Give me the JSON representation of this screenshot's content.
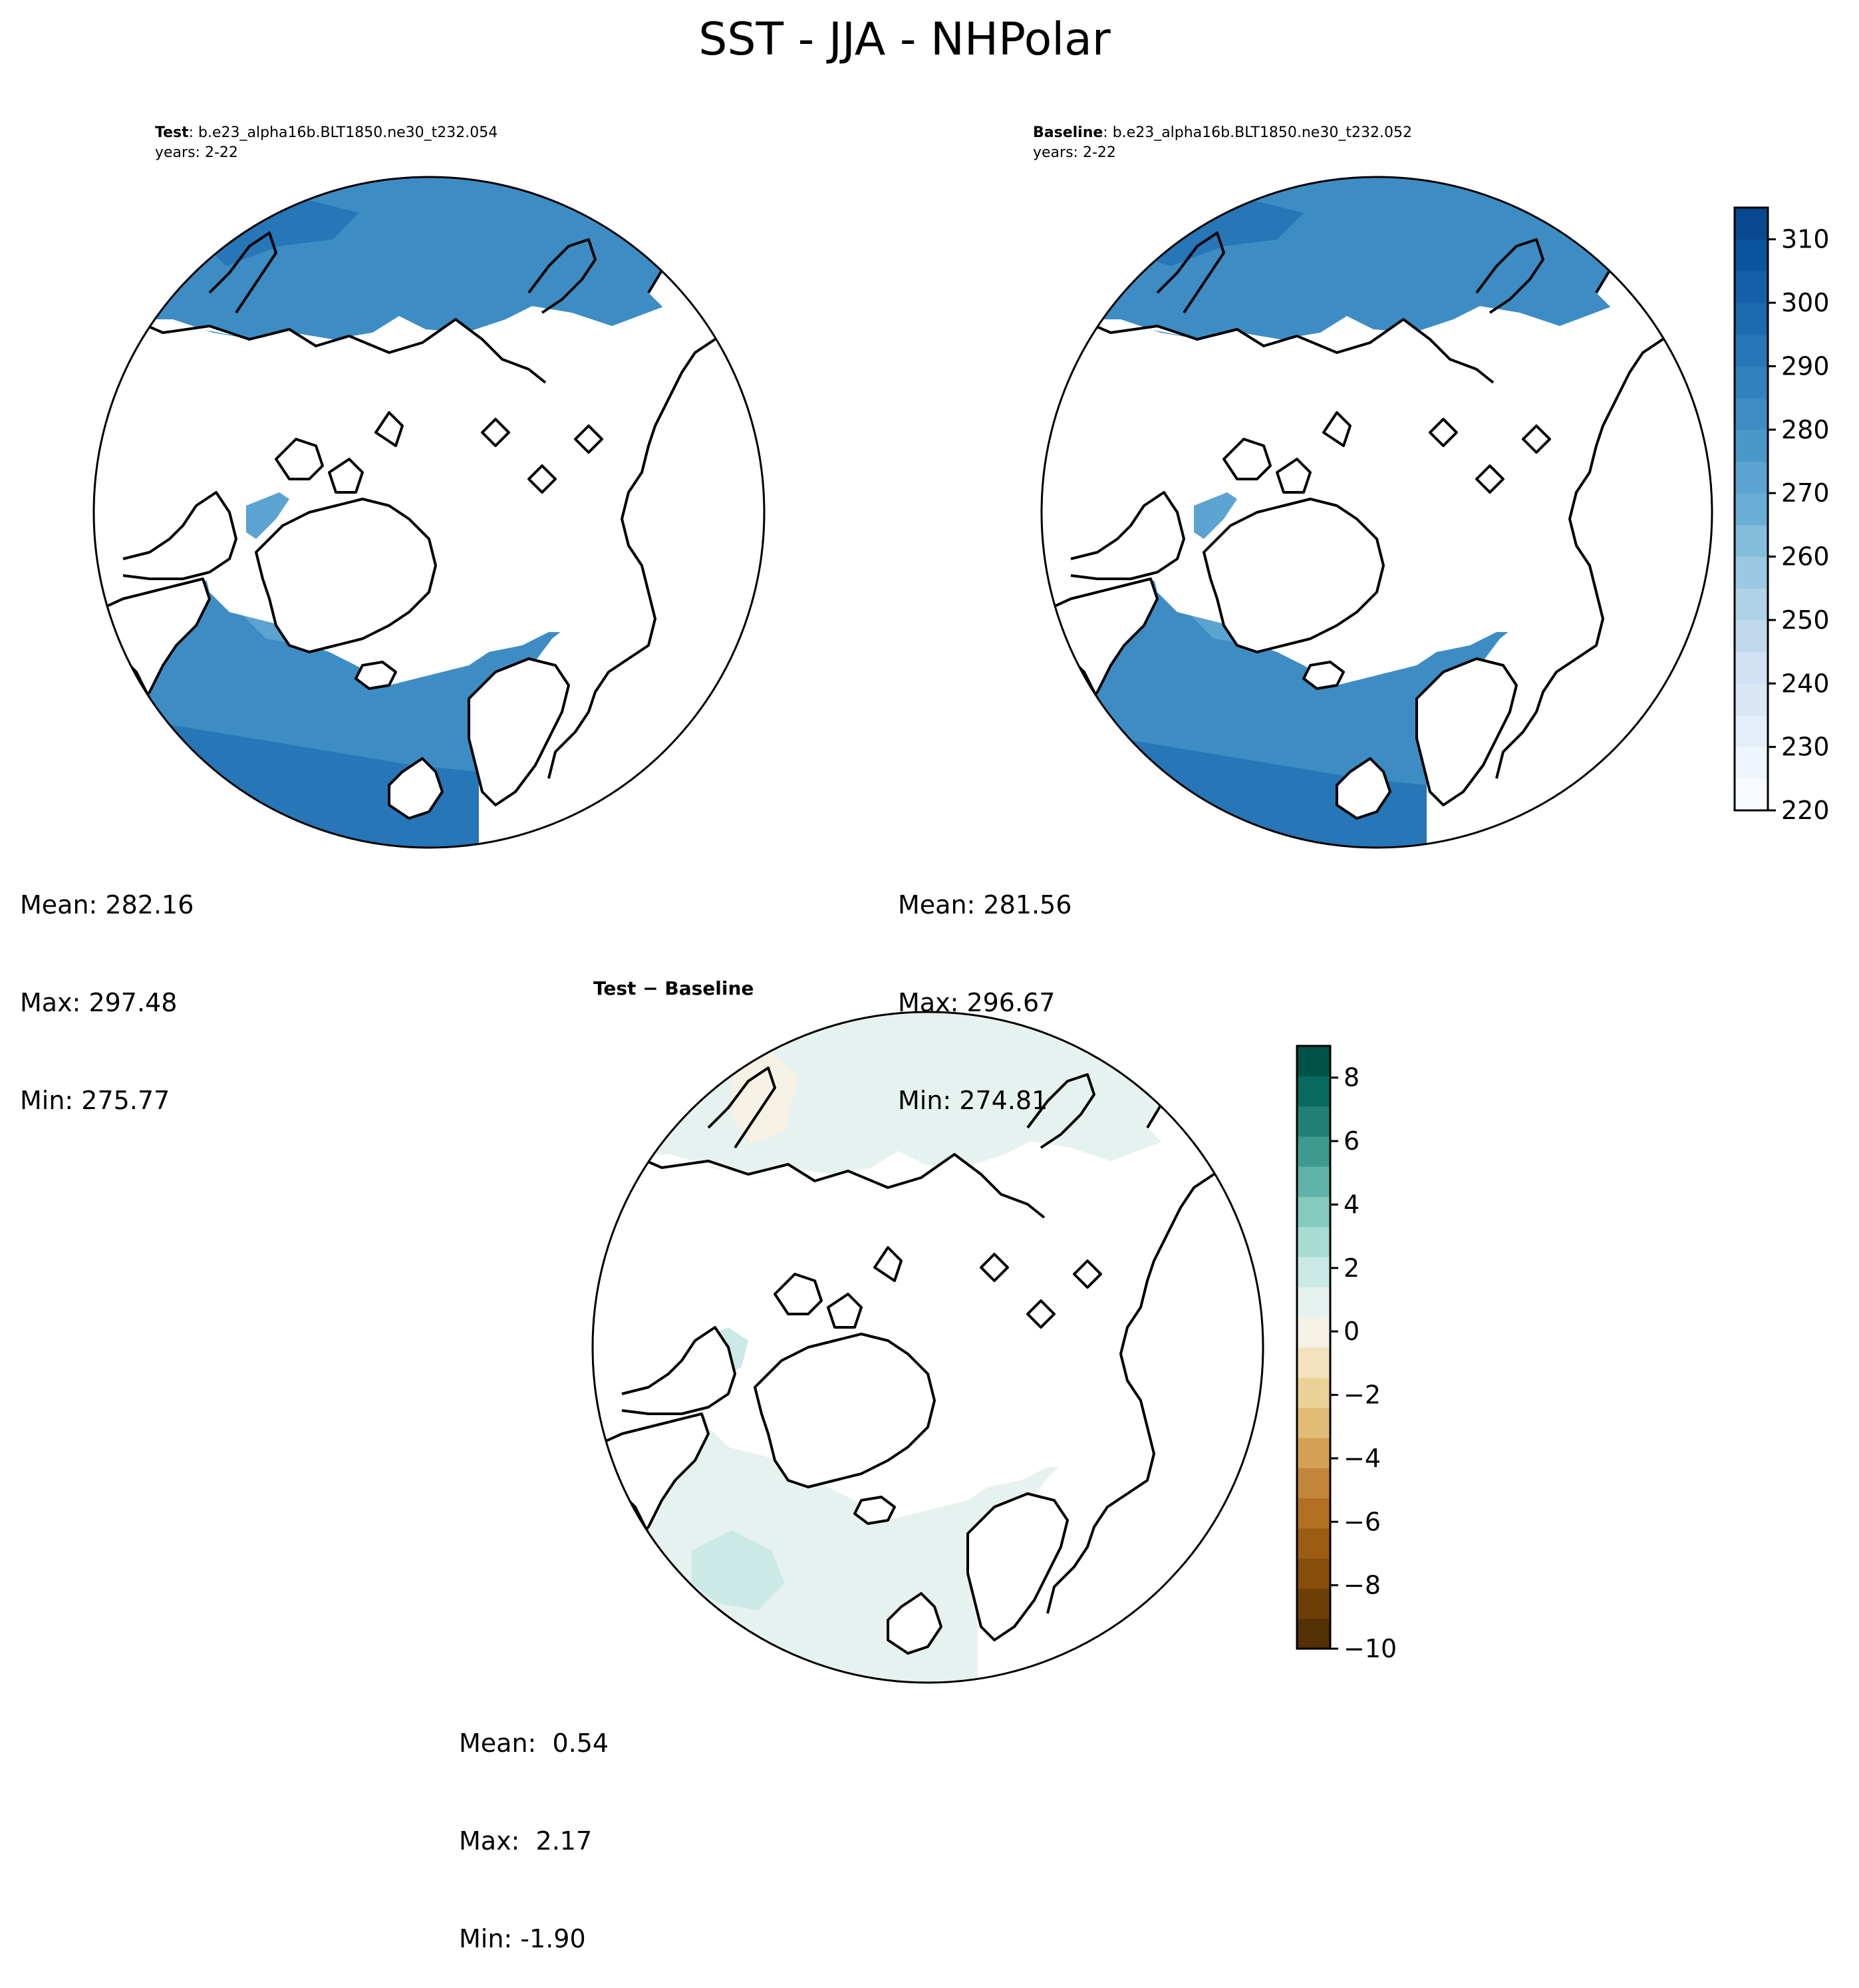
{
  "title": "SST - JJA - NHPolar",
  "panels": {
    "test": {
      "label_bold": "Test",
      "label_rest": ": b.e23_alpha16b.BLT1850.ne30_t232.054",
      "years": "years: 2-22",
      "mean": "Mean: 282.16",
      "max": "Max: 297.48",
      "min": "Min: 275.77"
    },
    "baseline": {
      "label_bold": "Baseline",
      "label_rest": ": b.e23_alpha16b.BLT1850.ne30_t232.052",
      "years": "years: 2-22",
      "mean": "Mean: 281.56",
      "max": "Max: 296.67",
      "min": "Min: 274.81"
    },
    "diff": {
      "label": "Test − Baseline",
      "mean": "Mean:  0.54",
      "max": "Max:  2.17",
      "min": "Min: -1.90"
    }
  },
  "colorbar_main": {
    "min": 220,
    "max": 315,
    "step": 5,
    "ticks": [
      220,
      230,
      240,
      250,
      260,
      270,
      280,
      290,
      300,
      310
    ],
    "colors": [
      "#f7fbff",
      "#eef5fc",
      "#e3eef9",
      "#d9e7f5",
      "#cfe1f2",
      "#c1d9ed",
      "#b0d2e7",
      "#9cc9e1",
      "#84bcdb",
      "#6aaed6",
      "#5ba3d0",
      "#4a98c9",
      "#3d8dc4",
      "#3181bd",
      "#2676b8",
      "#1c6ab0",
      "#1460a8",
      "#0b559f",
      "#08488e"
    ],
    "cmap": "Blues"
  },
  "colorbar_diff": {
    "min": -10,
    "max": 9,
    "step": 1,
    "ticks": [
      "8",
      "6",
      "4",
      "2",
      "0",
      "−2",
      "−4",
      "−6",
      "−8",
      "−10"
    ],
    "tick_values": [
      8,
      6,
      4,
      2,
      0,
      -2,
      -4,
      -6,
      -8,
      -10
    ],
    "colors": [
      "#543005",
      "#6d3f07",
      "#864e09",
      "#9c5d12",
      "#b26f22",
      "#c38539",
      "#d4a053",
      "#e2bc74",
      "#ebd297",
      "#f3e2bc",
      "#f5f1e4",
      "#e6f2ef",
      "#cbeae5",
      "#a8ddd4",
      "#84cbbe",
      "#5fb2a7",
      "#3e9a8f",
      "#218177",
      "#086a5e",
      "#005347"
    ],
    "cmap": "BrBG"
  },
  "map_colors": {
    "test_ocean_light": "#5ba3d0",
    "test_ocean_mid": "#3d8dc4",
    "test_ocean_dark": "#2676b8",
    "test_ocean_darkest": "#1c6ab0",
    "diff_ocean": "#e6f2ef",
    "diff_ocean_warm": "#f5f1e4",
    "diff_ocean_cool": "#cbeae5"
  }
}
